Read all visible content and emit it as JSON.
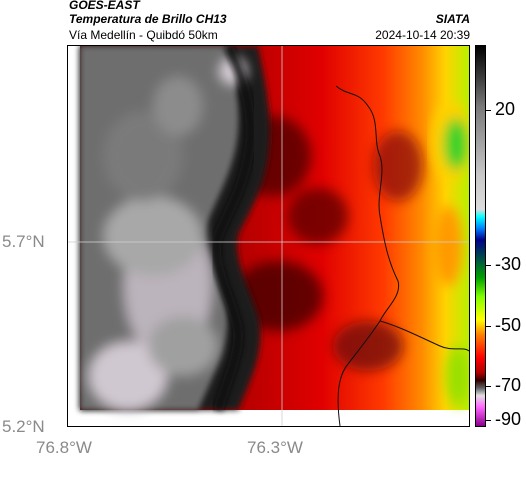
{
  "header": {
    "satellite": "GOES-EAST",
    "product": "Temperatura de Brillo CH13",
    "region": "Vía Medellín - Quibdó 50km",
    "organization": "SIATA",
    "timestamp": "2024-10-14 20:39"
  },
  "axes": {
    "lat_labels": [
      "5.7°N",
      "5.2°N"
    ],
    "lon_labels": [
      "76.8°W",
      "76.3°W"
    ]
  },
  "colorbar": {
    "labels": [
      "20",
      "-30",
      "-50",
      "-70",
      "-90"
    ],
    "colors": [
      "#000000",
      "#c8c8c8",
      "#00ffff",
      "#00008b",
      "#00a000",
      "#ffff00",
      "#ff0000",
      "#300000",
      "#e0e0e0",
      "#8b008b"
    ]
  },
  "colors": {
    "cloud_dark": "#1a1a1a",
    "cloud_grey": "#7d7d7d",
    "cloud_light": "#c4bcc4",
    "warm_dark_red": "#6a0a0a",
    "warm_red": "#d40000",
    "warm_orange": "#ff5a00",
    "warm_yellow": "#ffd400",
    "warm_green": "#20d020"
  }
}
